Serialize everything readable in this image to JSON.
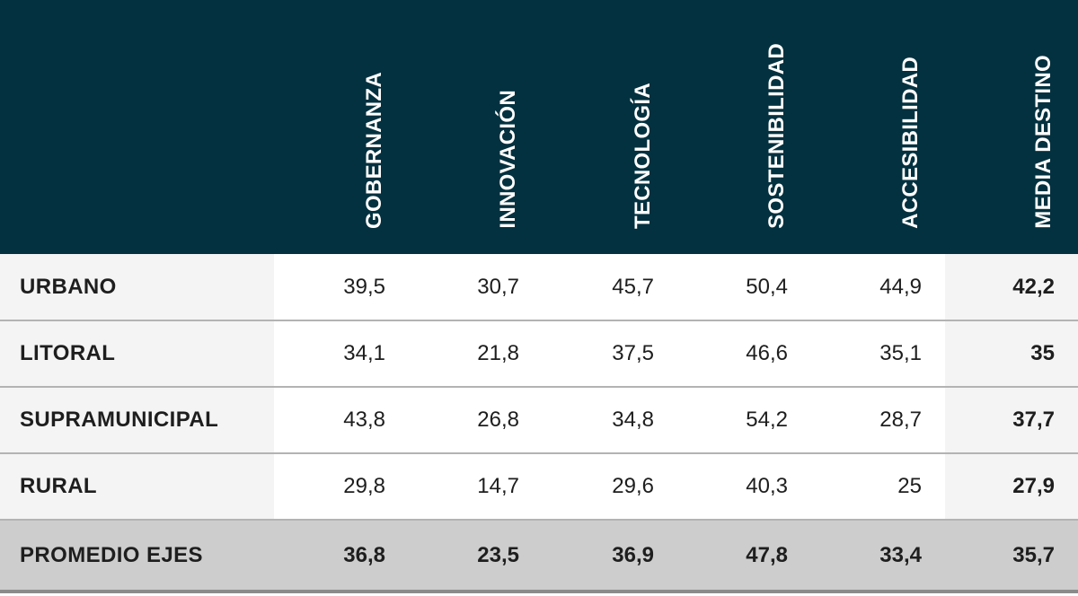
{
  "chart_data": {
    "type": "table",
    "columns": [
      "GOBERNANZA",
      "INNOVACIÓN",
      "TECNOLOGÍA",
      "SOSTENIBILIDAD",
      "ACCESIBILIDAD",
      "MEDIA DESTINO"
    ],
    "rows": [
      {
        "label": "URBANO",
        "values": [
          "39,5",
          "30,7",
          "45,7",
          "50,4",
          "44,9",
          "42,2"
        ]
      },
      {
        "label": "LITORAL",
        "values": [
          "34,1",
          "21,8",
          "37,5",
          "46,6",
          "35,1",
          "35"
        ]
      },
      {
        "label": "SUPRAMUNICIPAL",
        "values": [
          "43,8",
          "26,8",
          "34,8",
          "54,2",
          "28,7",
          "37,7"
        ]
      },
      {
        "label": "RURAL",
        "values": [
          "29,8",
          "14,7",
          "29,6",
          "40,3",
          "25",
          "27,9"
        ]
      },
      {
        "label": "PROMEDIO EJES",
        "values": [
          "36,8",
          "23,5",
          "36,9",
          "47,8",
          "33,4",
          "35,7"
        ]
      }
    ]
  },
  "colors": {
    "header_bg": "#03313f",
    "header_text": "#ffffff",
    "label_bg": "#f4f4f4",
    "average_row_bg": "#cdcdcd"
  }
}
